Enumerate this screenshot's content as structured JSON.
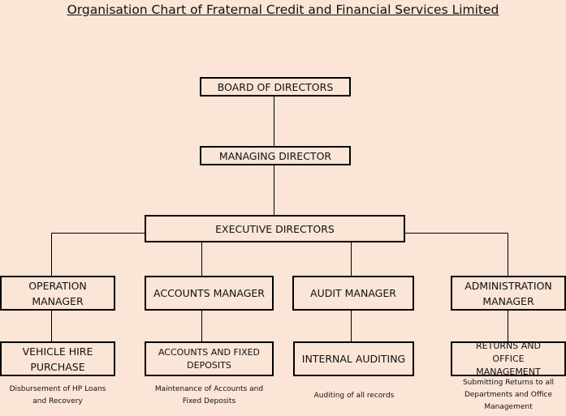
{
  "title": "Organisation Chart of Fraternal Credit and Financial Services Limited",
  "nodes": {
    "board": "BOARD OF DIRECTORS",
    "md": "MANAGING DIRECTOR",
    "exec": "EXECUTIVE DIRECTORS",
    "managers": [
      {
        "label": "OPERATION MANAGER",
        "unit": "VEHICLE HIRE PURCHASE",
        "desc": "Disbursement of HP Loans and Recovery"
      },
      {
        "label": "ACCOUNTS MANAGER",
        "unit": "ACCOUNTS AND FIXED DEPOSITS",
        "desc": "Maintenance of Accounts and Fixed Deposits"
      },
      {
        "label": "AUDIT MANAGER",
        "unit": "INTERNAL AUDITING",
        "desc": "Auditing of all records"
      },
      {
        "label": "ADMINISTRATION MANAGER",
        "unit": "RETURNS AND OFFICE MANAGEMENT",
        "desc": "Submitting Returns to all Departments and Office Management"
      }
    ]
  },
  "colors": {
    "background": "#fbe5d6",
    "border": "#000000"
  }
}
